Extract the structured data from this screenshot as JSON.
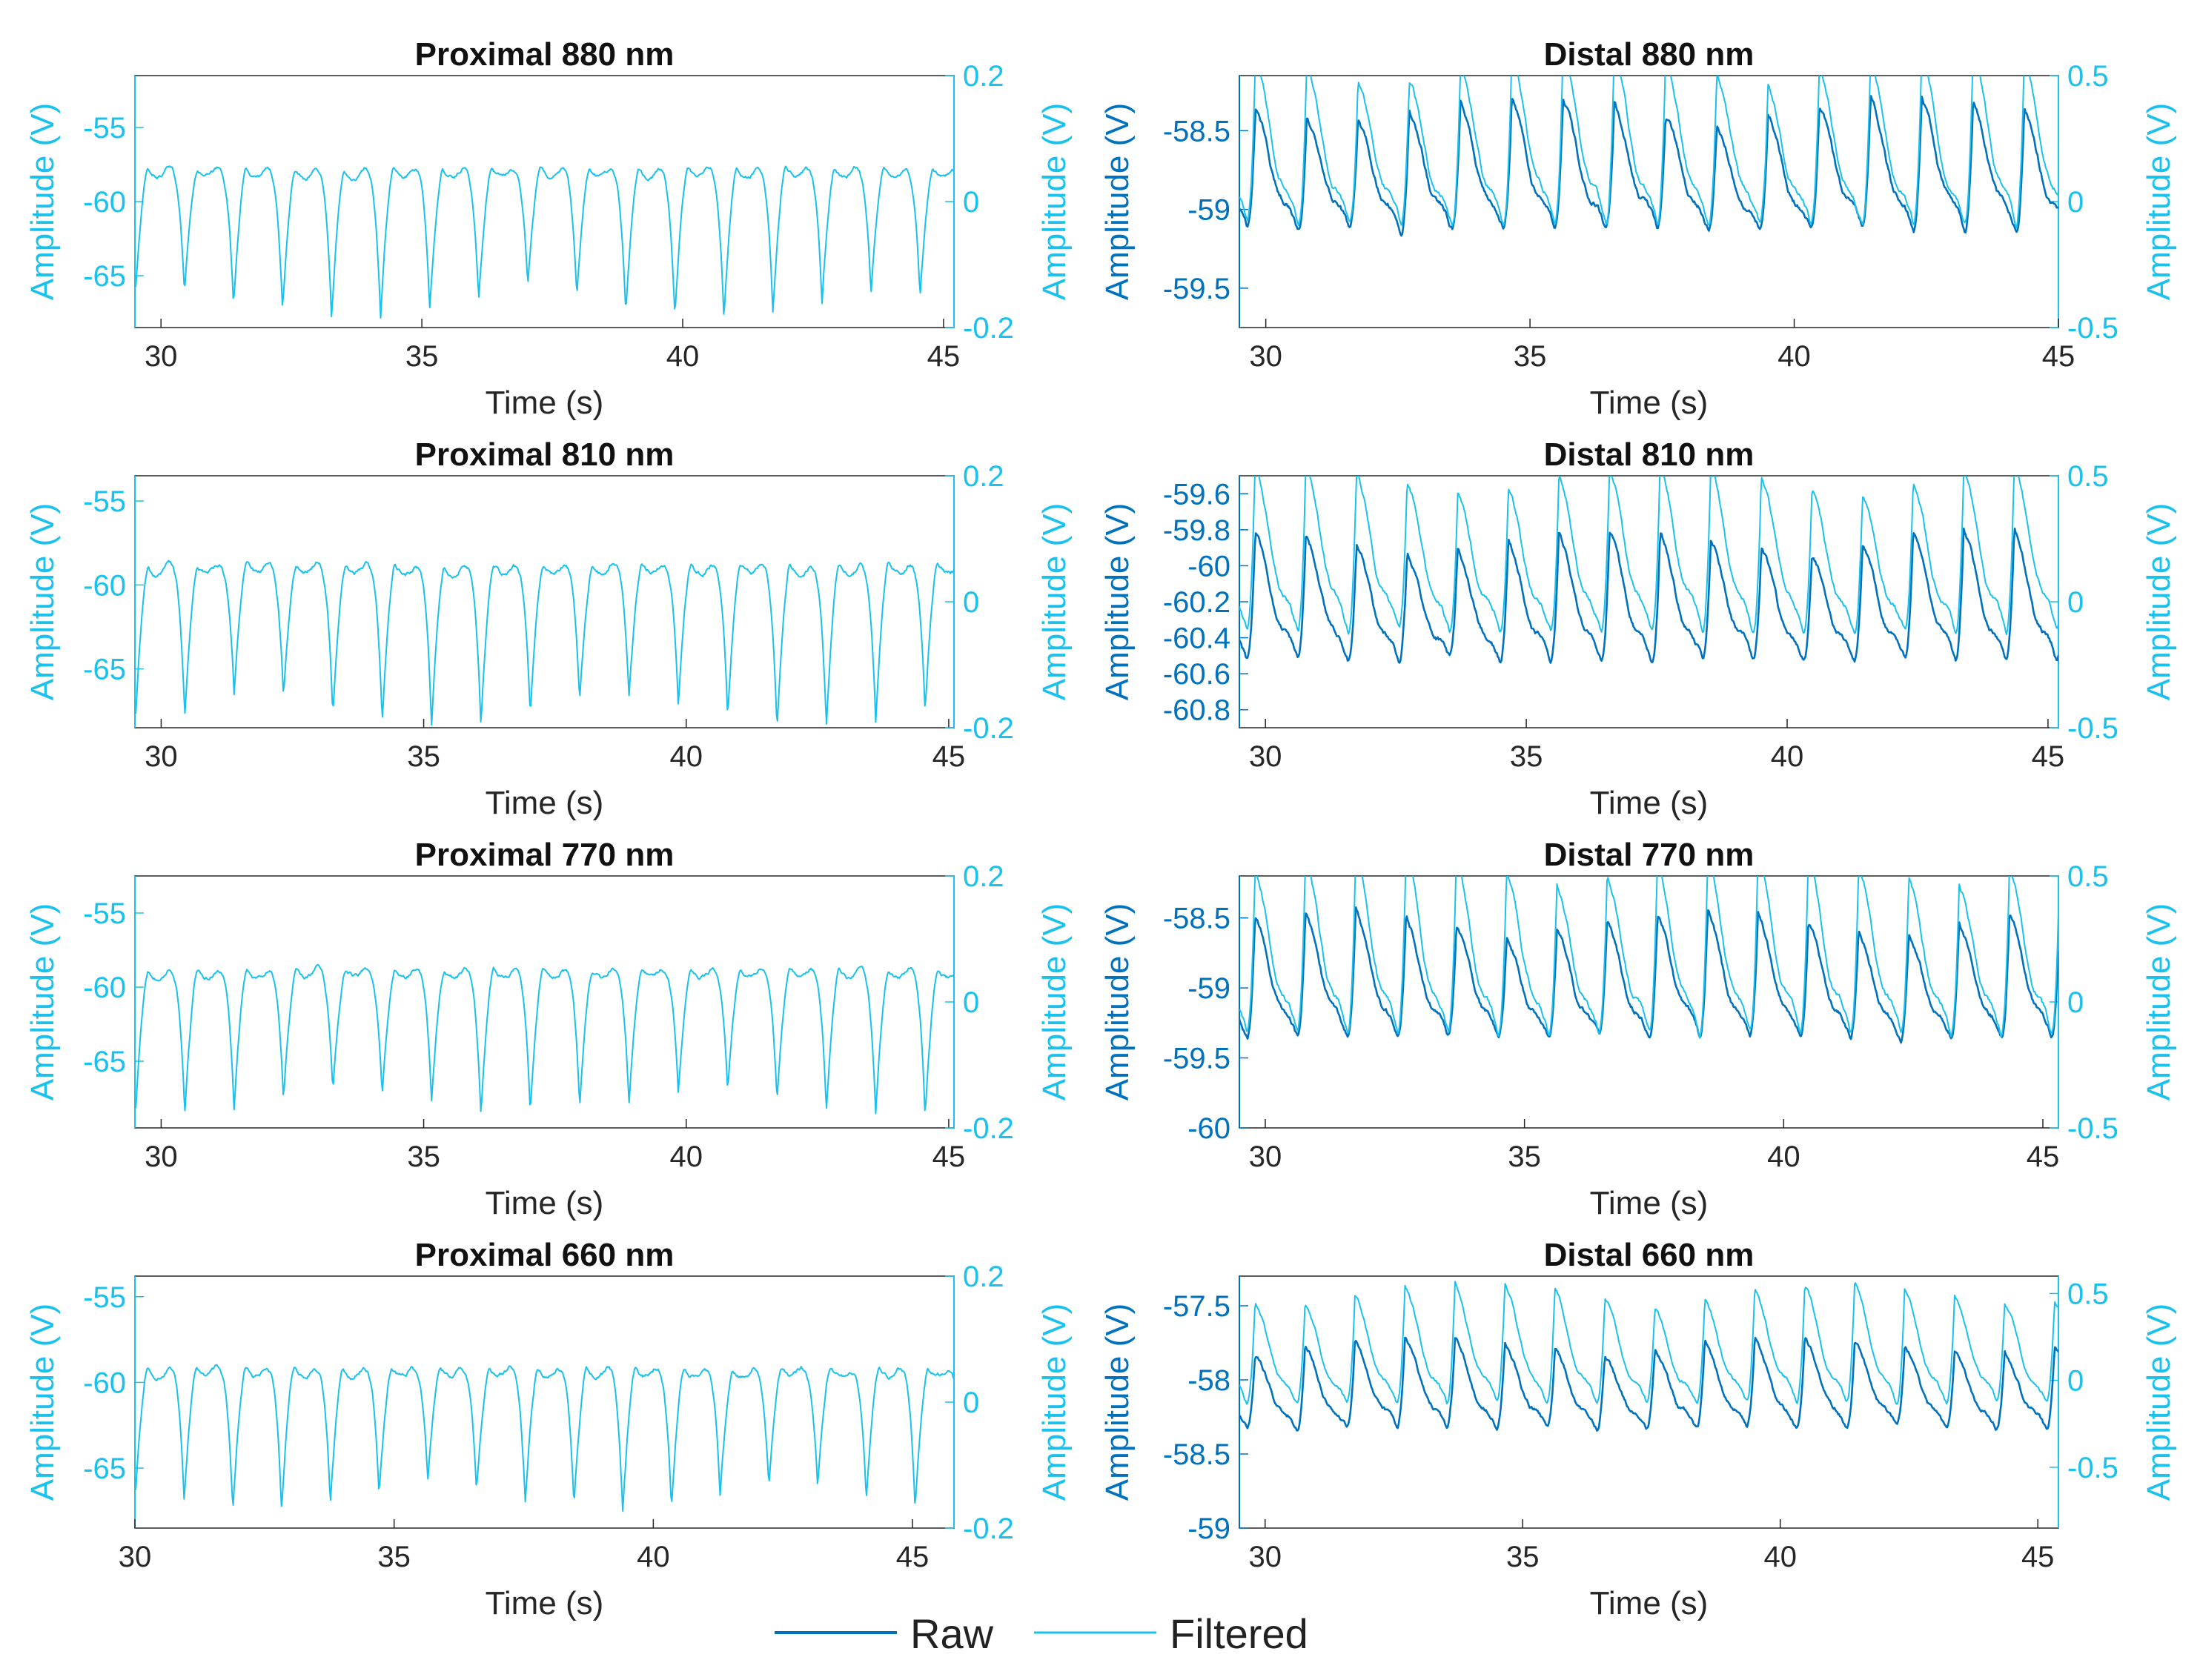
{
  "colors": {
    "raw": "#0072BD",
    "filtered": "#1AC1EC",
    "axis": "#262626",
    "background": "#ffffff"
  },
  "legend": {
    "raw_label": "Raw",
    "filtered_label": "Filtered",
    "position": "bottom-center"
  },
  "chart_data": [
    {
      "id": "proximal-880",
      "type": "line",
      "title": "Proximal 880 nm",
      "xlabel": "Time (s)",
      "ylabel_left": "Amplitude (V)",
      "ylabel_right": "Amplitude (V)",
      "xlim": [
        29.5,
        45.2
      ],
      "xticks": [
        30,
        35,
        40,
        45
      ],
      "ylim_left": [
        -68.5,
        -51.5
      ],
      "yticks_left": [
        -55,
        -60,
        -65
      ],
      "ytick_labels_left": [
        "-55",
        "-60",
        "-65"
      ],
      "ylim_right": [
        -0.2,
        0.2
      ],
      "yticks_right": [
        0.2,
        0,
        -0.2
      ],
      "ytick_labels_right": [
        "0.2",
        "0",
        "-0.2"
      ],
      "series": [
        {
          "name": "Raw",
          "axis": "left",
          "visible": false,
          "t_start": 29.5,
          "t_end": 45.2,
          "period_s": 0.94,
          "phase_s": 0.05,
          "baseline": -57.6,
          "amplitude": 9.2,
          "noise": 0.35
        },
        {
          "name": "Filtered",
          "axis": "left",
          "visible": true,
          "t_start": 29.5,
          "t_end": 45.2,
          "period_s": 0.94,
          "phase_s": 0.05,
          "baseline": -57.8,
          "amplitude": 9.0,
          "noise": 0.35
        }
      ]
    },
    {
      "id": "distal-880",
      "type": "line",
      "title": "Distal 880 nm",
      "xlabel": "Time (s)",
      "ylabel_left": "Amplitude (V)",
      "ylabel_right": "Amplitude (V)",
      "xlim": [
        29.5,
        45.0
      ],
      "xticks": [
        30,
        35,
        40,
        45
      ],
      "ylim_left": [
        -59.75,
        -58.15
      ],
      "yticks_left": [
        -58.5,
        -59,
        -59.5
      ],
      "ytick_labels_left": [
        "-58.5",
        "-59",
        "-59.5"
      ],
      "ylim_right": [
        -0.5,
        0.5
      ],
      "yticks_right": [
        0.5,
        0,
        -0.5
      ],
      "ytick_labels_right": [
        "0.5",
        "0",
        "-0.5"
      ],
      "series": [
        {
          "name": "Raw",
          "axis": "left",
          "visible": true,
          "t_start": 29.5,
          "t_end": 45.0,
          "period_s": 0.97,
          "phase_s": 0.55,
          "baseline": -58.75,
          "amplitude": 0.75,
          "noise": 0.05
        },
        {
          "name": "Filtered",
          "axis": "right",
          "visible": true,
          "t_start": 29.5,
          "t_end": 45.0,
          "period_s": 0.97,
          "phase_s": 0.55,
          "baseline": 0.22,
          "amplitude": 0.62,
          "noise": 0.03
        }
      ]
    },
    {
      "id": "proximal-810",
      "type": "line",
      "title": "Proximal 810 nm",
      "xlabel": "Time (s)",
      "ylabel_left": "Amplitude (V)",
      "ylabel_right": "Amplitude (V)",
      "xlim": [
        29.5,
        45.1
      ],
      "xticks": [
        30,
        35,
        40,
        45
      ],
      "ylim_left": [
        -68.5,
        -53.5
      ],
      "yticks_left": [
        -55,
        -60,
        -65
      ],
      "ytick_labels_left": [
        "-55",
        "-60",
        "-65"
      ],
      "ylim_right": [
        -0.2,
        0.2
      ],
      "yticks_right": [
        0.2,
        0,
        -0.2
      ],
      "ytick_labels_right": [
        "0.2",
        "0",
        "-0.2"
      ],
      "series": [
        {
          "name": "Raw",
          "axis": "left",
          "visible": false,
          "t_start": 29.5,
          "t_end": 45.1,
          "period_s": 0.94,
          "phase_s": 0.05,
          "baseline": -58.6,
          "amplitude": 8.8,
          "noise": 0.35
        },
        {
          "name": "Filtered",
          "axis": "left",
          "visible": true,
          "t_start": 29.5,
          "t_end": 45.1,
          "period_s": 0.94,
          "phase_s": 0.05,
          "baseline": -58.8,
          "amplitude": 8.6,
          "noise": 0.35
        }
      ]
    },
    {
      "id": "distal-810",
      "type": "line",
      "title": "Distal 810 nm",
      "xlabel": "Time (s)",
      "ylabel_left": "Amplitude (V)",
      "ylabel_right": "Amplitude (V)",
      "xlim": [
        29.5,
        45.2
      ],
      "xticks": [
        30,
        35,
        40,
        45
      ],
      "ylim_left": [
        -60.9,
        -59.5
      ],
      "yticks_left": [
        -59.6,
        -59.8,
        -60,
        -60.2,
        -60.4,
        -60.6,
        -60.8
      ],
      "ytick_labels_left": [
        "-59.6",
        "-59.8",
        "-60",
        "-60.2",
        "-60.4",
        "-60.6",
        "-60.8"
      ],
      "ylim_right": [
        -0.5,
        0.5
      ],
      "yticks_right": [
        0.5,
        0,
        -0.5
      ],
      "ytick_labels_right": [
        "0.5",
        "0",
        "-0.5"
      ],
      "series": [
        {
          "name": "Raw",
          "axis": "left",
          "visible": true,
          "t_start": 29.5,
          "t_end": 45.2,
          "period_s": 0.97,
          "phase_s": 0.55,
          "baseline": -60.2,
          "amplitude": 0.65,
          "noise": 0.04
        },
        {
          "name": "Filtered",
          "axis": "right",
          "visible": true,
          "t_start": 29.5,
          "t_end": 45.2,
          "period_s": 0.97,
          "phase_s": 0.55,
          "baseline": 0.18,
          "amplitude": 0.6,
          "noise": 0.03
        }
      ]
    },
    {
      "id": "proximal-770",
      "type": "line",
      "title": "Proximal 770 nm",
      "xlabel": "Time (s)",
      "ylabel_left": "Amplitude (V)",
      "ylabel_right": "Amplitude (V)",
      "xlim": [
        29.5,
        45.1
      ],
      "xticks": [
        30,
        35,
        40,
        45
      ],
      "ylim_left": [
        -69.5,
        -52.5
      ],
      "yticks_left": [
        -55,
        -60,
        -65
      ],
      "ytick_labels_left": [
        "-55",
        "-60",
        "-65"
      ],
      "ylim_right": [
        -0.2,
        0.2
      ],
      "yticks_right": [
        0.2,
        0,
        -0.2
      ],
      "ytick_labels_right": [
        "0.2",
        "0",
        "-0.2"
      ],
      "series": [
        {
          "name": "Raw",
          "axis": "left",
          "visible": false,
          "t_start": 29.5,
          "t_end": 45.1,
          "period_s": 0.94,
          "phase_s": 0.05,
          "baseline": -58.6,
          "amplitude": 9.0,
          "noise": 0.35
        },
        {
          "name": "Filtered",
          "axis": "left",
          "visible": true,
          "t_start": 29.5,
          "t_end": 45.1,
          "period_s": 0.94,
          "phase_s": 0.05,
          "baseline": -58.8,
          "amplitude": 8.8,
          "noise": 0.35
        }
      ]
    },
    {
      "id": "distal-770",
      "type": "line",
      "title": "Distal 770 nm",
      "xlabel": "Time (s)",
      "ylabel_left": "Amplitude (V)",
      "ylabel_right": "Amplitude (V)",
      "xlim": [
        29.5,
        45.3
      ],
      "xticks": [
        30,
        35,
        40,
        45
      ],
      "ylim_left": [
        -60.0,
        -58.2
      ],
      "yticks_left": [
        -58.5,
        -59,
        -59.5,
        -60
      ],
      "ytick_labels_left": [
        "-58.5",
        "-59",
        "-59.5",
        "-60"
      ],
      "ylim_right": [
        -0.5,
        0.5
      ],
      "yticks_right": [
        0.5,
        0,
        -0.5
      ],
      "ytick_labels_right": [
        "0.5",
        "0",
        "-0.5"
      ],
      "series": [
        {
          "name": "Raw",
          "axis": "left",
          "visible": true,
          "t_start": 29.5,
          "t_end": 45.3,
          "period_s": 0.97,
          "phase_s": 0.55,
          "baseline": -58.95,
          "amplitude": 0.8,
          "noise": 0.05
        },
        {
          "name": "Filtered",
          "axis": "right",
          "visible": true,
          "t_start": 29.5,
          "t_end": 45.3,
          "period_s": 0.97,
          "phase_s": 0.55,
          "baseline": 0.2,
          "amplitude": 0.65,
          "noise": 0.03
        }
      ]
    },
    {
      "id": "proximal-660",
      "type": "line",
      "title": "Proximal 660 nm",
      "xlabel": "Time (s)",
      "ylabel_left": "Amplitude (V)",
      "ylabel_right": "Amplitude (V)",
      "xlim": [
        30,
        45.8
      ],
      "xticks": [
        30,
        35,
        40,
        45
      ],
      "ylim_left": [
        -68.5,
        -53.8
      ],
      "yticks_left": [
        -55,
        -60,
        -65
      ],
      "ytick_labels_left": [
        "-55",
        "-60",
        "-65"
      ],
      "ylim_right": [
        -0.2,
        0.2
      ],
      "yticks_right": [
        0.2,
        0,
        -0.2
      ],
      "ytick_labels_right": [
        "0.2",
        "0",
        "-0.2"
      ],
      "series": [
        {
          "name": "Raw",
          "axis": "left",
          "visible": false,
          "t_start": 30,
          "t_end": 45.8,
          "period_s": 0.94,
          "phase_s": 0.55,
          "baseline": -59.0,
          "amplitude": 7.6,
          "noise": 0.35
        },
        {
          "name": "Filtered",
          "axis": "left",
          "visible": true,
          "t_start": 30,
          "t_end": 45.8,
          "period_s": 0.94,
          "phase_s": 0.55,
          "baseline": -59.2,
          "amplitude": 7.4,
          "noise": 0.35
        }
      ]
    },
    {
      "id": "distal-660",
      "type": "line",
      "title": "Distal 660 nm",
      "xlabel": "Time (s)",
      "ylabel_left": "Amplitude (V)",
      "ylabel_right": "Amplitude (V)",
      "xlim": [
        29.5,
        45.4
      ],
      "xticks": [
        30,
        35,
        40,
        45
      ],
      "ylim_left": [
        -59.0,
        -57.3
      ],
      "yticks_left": [
        -57.5,
        -58,
        -58.5,
        -59
      ],
      "ytick_labels_left": [
        "-57.5",
        "-58",
        "-58.5",
        "-59"
      ],
      "ylim_right": [
        -0.85,
        0.6
      ],
      "yticks_right": [
        0.5,
        0,
        -0.5
      ],
      "ytick_labels_right": [
        "0.5",
        "0",
        "-0.5"
      ],
      "series": [
        {
          "name": "Raw",
          "axis": "left",
          "visible": true,
          "t_start": 29.5,
          "t_end": 45.4,
          "period_s": 0.97,
          "phase_s": 0.55,
          "baseline": -58.05,
          "amplitude": 0.55,
          "noise": 0.04
        },
        {
          "name": "Filtered",
          "axis": "right",
          "visible": true,
          "t_start": 29.5,
          "t_end": 45.4,
          "period_s": 0.97,
          "phase_s": 0.55,
          "baseline": 0.18,
          "amplitude": 0.62,
          "noise": 0.03
        }
      ]
    }
  ]
}
